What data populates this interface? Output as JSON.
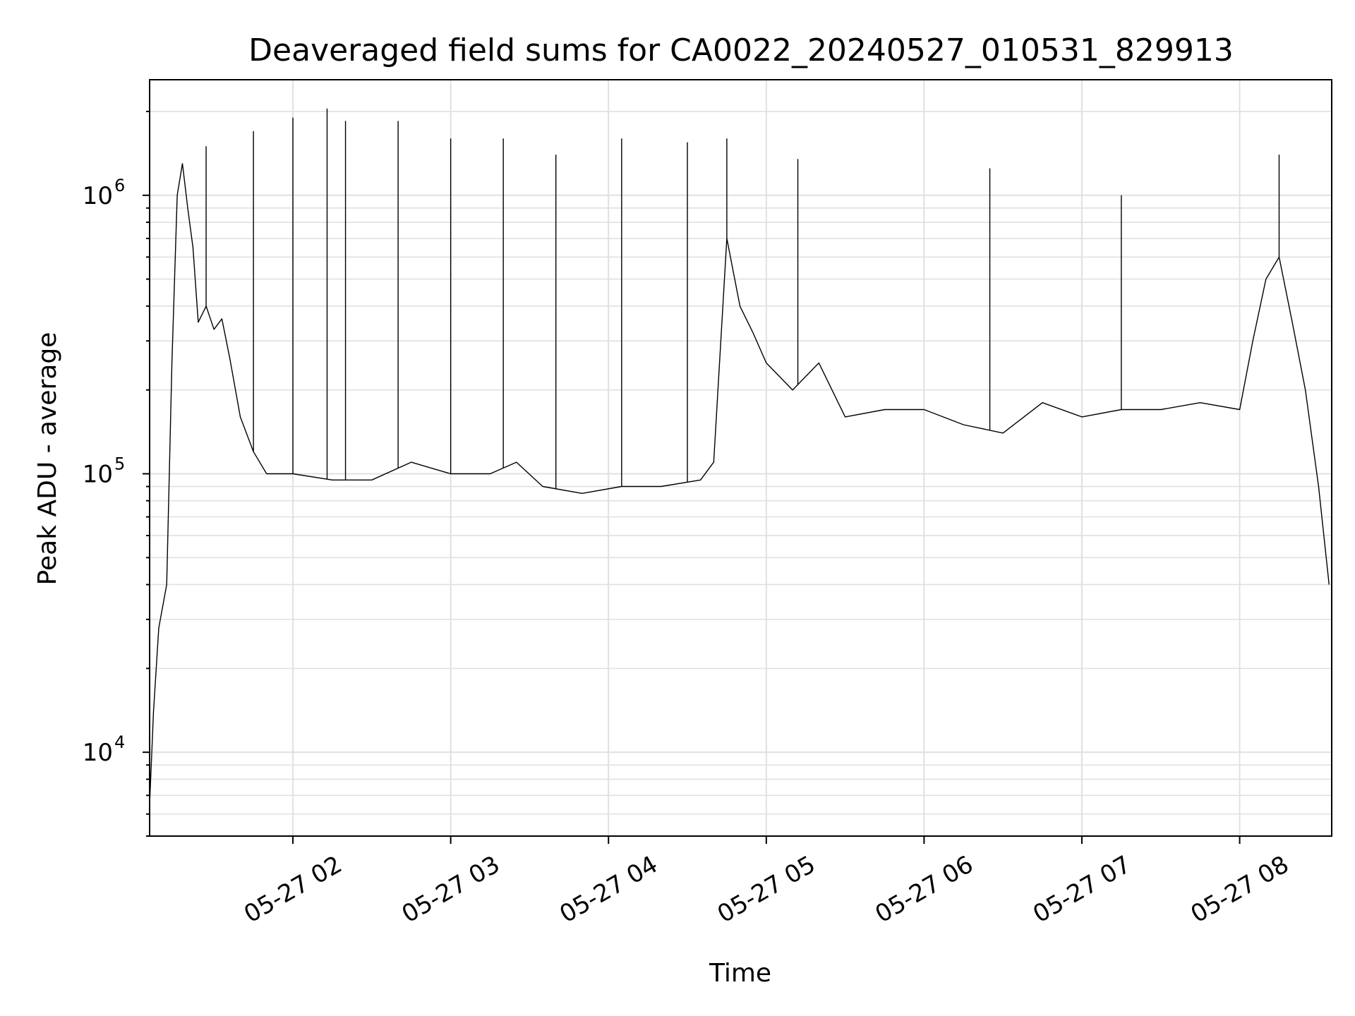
{
  "chart_data": {
    "type": "line",
    "title": "Deaveraged field sums for CA0022_20240527_010531_829913",
    "xlabel": "Time",
    "ylabel": "Peak ADU - average",
    "xlim": [
      "2024-05-27 01:05:31",
      "2024-05-27 08:35:00"
    ],
    "ylim": [
      5000,
      2600000
    ],
    "yscale": "log",
    "grid": true,
    "line_color": "#000000",
    "x_ticks": [
      "2024-05-27 02:00",
      "2024-05-27 03:00",
      "2024-05-27 04:00",
      "2024-05-27 05:00",
      "2024-05-27 06:00",
      "2024-05-27 07:00",
      "2024-05-27 08:00"
    ],
    "x_tick_labels": [
      "05-27 02",
      "05-27 03",
      "05-27 04",
      "05-27 05",
      "05-27 06",
      "05-27 07",
      "05-27 08"
    ],
    "y_ticks": [
      10000,
      100000,
      1000000
    ],
    "y_tick_labels": [
      {
        "base": "10",
        "exp": "4"
      },
      {
        "base": "10",
        "exp": "5"
      },
      {
        "base": "10",
        "exp": "6"
      }
    ],
    "series": [
      {
        "x": [
          "2024-05-27 01:05:31",
          "2024-05-27 01:07:00",
          "2024-05-27 01:09:00",
          "2024-05-27 01:12:00",
          "2024-05-27 01:14:00",
          "2024-05-27 01:16:00",
          "2024-05-27 01:18:00",
          "2024-05-27 01:20:00",
          "2024-05-27 01:22:00",
          "2024-05-27 01:24:00",
          "2024-05-27 01:27:00",
          "2024-05-27 01:30:00",
          "2024-05-27 01:33:00",
          "2024-05-27 01:36:00",
          "2024-05-27 01:40:00",
          "2024-05-27 01:45:00",
          "2024-05-27 01:50:00",
          "2024-05-27 01:55:00",
          "2024-05-27 02:00:00",
          "2024-05-27 02:15:00",
          "2024-05-27 02:30:00",
          "2024-05-27 02:45:00",
          "2024-05-27 03:00:00",
          "2024-05-27 03:15:00",
          "2024-05-27 03:25:00",
          "2024-05-27 03:35:00",
          "2024-05-27 03:50:00",
          "2024-05-27 04:05:00",
          "2024-05-27 04:20:00",
          "2024-05-27 04:35:00",
          "2024-05-27 04:40:00",
          "2024-05-27 04:45:00",
          "2024-05-27 04:50:00",
          "2024-05-27 04:55:00",
          "2024-05-27 05:00:00",
          "2024-05-27 05:10:00",
          "2024-05-27 05:20:00",
          "2024-05-27 05:30:00",
          "2024-05-27 05:45:00",
          "2024-05-27 06:00:00",
          "2024-05-27 06:15:00",
          "2024-05-27 06:30:00",
          "2024-05-27 06:45:00",
          "2024-05-27 07:00:00",
          "2024-05-27 07:15:00",
          "2024-05-27 07:30:00",
          "2024-05-27 07:45:00",
          "2024-05-27 08:00:00",
          "2024-05-27 08:05:00",
          "2024-05-27 08:10:00",
          "2024-05-27 08:15:00",
          "2024-05-27 08:20:00",
          "2024-05-27 08:25:00",
          "2024-05-27 08:30:00",
          "2024-05-27 08:34:00"
        ],
        "values": [
          6500,
          14000,
          28000,
          40000,
          250000,
          1000000,
          1300000,
          900000,
          650000,
          350000,
          400000,
          330000,
          360000,
          260000,
          160000,
          120000,
          100000,
          100000,
          100000,
          95000,
          95000,
          110000,
          100000,
          100000,
          110000,
          90000,
          85000,
          90000,
          90000,
          95000,
          110000,
          700000,
          400000,
          320000,
          250000,
          200000,
          250000,
          160000,
          170000,
          170000,
          150000,
          140000,
          180000,
          160000,
          170000,
          170000,
          180000,
          170000,
          300000,
          500000,
          600000,
          350000,
          200000,
          90000,
          40000
        ],
        "spikes": [
          {
            "x": "2024-05-27 01:27:00",
            "y": 1500000
          },
          {
            "x": "2024-05-27 01:45:00",
            "y": 1700000
          },
          {
            "x": "2024-05-27 02:00:00",
            "y": 1900000
          },
          {
            "x": "2024-05-27 02:13:00",
            "y": 2050000
          },
          {
            "x": "2024-05-27 02:20:00",
            "y": 1850000
          },
          {
            "x": "2024-05-27 02:40:00",
            "y": 1850000
          },
          {
            "x": "2024-05-27 03:00:00",
            "y": 1600000
          },
          {
            "x": "2024-05-27 03:20:00",
            "y": 1600000
          },
          {
            "x": "2024-05-27 03:40:00",
            "y": 1400000
          },
          {
            "x": "2024-05-27 04:05:00",
            "y": 1600000
          },
          {
            "x": "2024-05-27 04:30:00",
            "y": 1550000
          },
          {
            "x": "2024-05-27 04:45:00",
            "y": 1600000
          },
          {
            "x": "2024-05-27 05:12:00",
            "y": 1350000
          },
          {
            "x": "2024-05-27 06:25:00",
            "y": 1250000
          },
          {
            "x": "2024-05-27 07:15:00",
            "y": 1000000
          },
          {
            "x": "2024-05-27 08:15:00",
            "y": 1400000
          }
        ]
      }
    ]
  }
}
